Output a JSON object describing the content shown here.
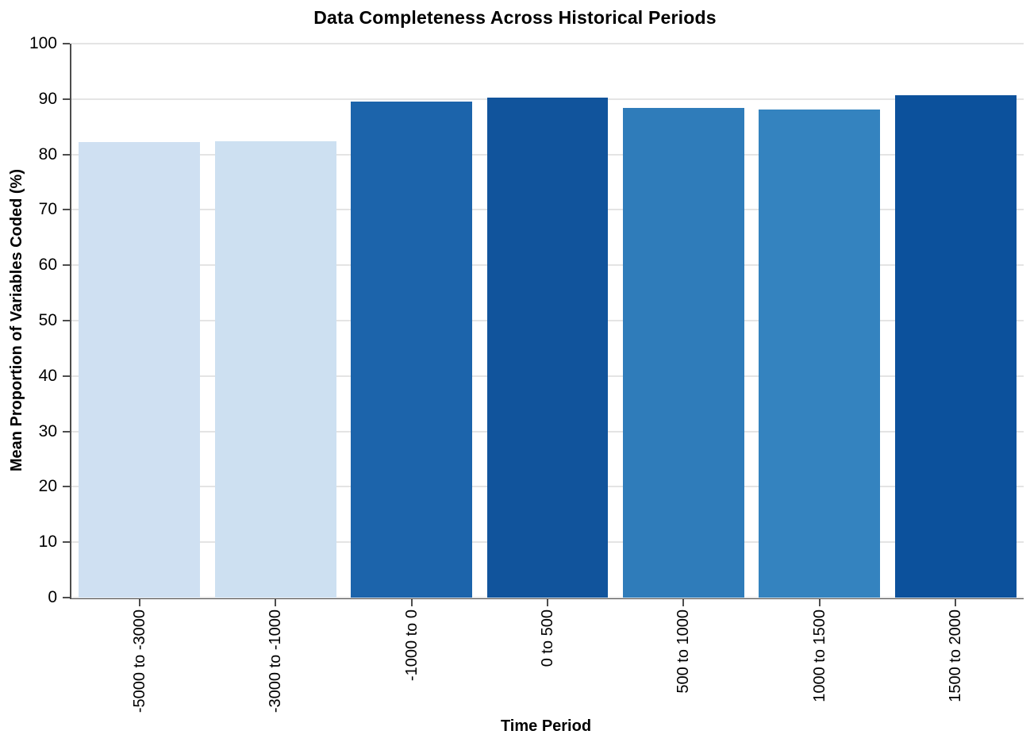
{
  "chart_data": {
    "type": "bar",
    "title": "Data Completeness Across Historical Periods",
    "xlabel": "Time Period",
    "ylabel": "Mean Proportion of Variables Coded (%)",
    "categories": [
      "-5000 to -3000",
      "-3000 to -1000",
      "-1000 to 0",
      "0 to 500",
      "500 to 1000",
      "1000 to 1500",
      "1500 to 2000"
    ],
    "values": [
      82.2,
      82.4,
      89.5,
      90.2,
      88.4,
      88.1,
      90.7
    ],
    "bar_colors": [
      "#cfe0f2",
      "#cde0f1",
      "#1c64ab",
      "#11549c",
      "#2f7cba",
      "#3483bf",
      "#0c519c"
    ],
    "ylim": [
      0,
      100
    ],
    "ytick_step": 10,
    "ytick_labels": [
      "0",
      "10",
      "20",
      "30",
      "40",
      "50",
      "60",
      "70",
      "80",
      "90",
      "100"
    ],
    "x_tick_label_rotation": 90,
    "grid": "horizontal-major",
    "legend": "none",
    "background_color": "#ffffff",
    "axis_color": "#4d4d4d",
    "grid_color": "#e4e4e4"
  }
}
